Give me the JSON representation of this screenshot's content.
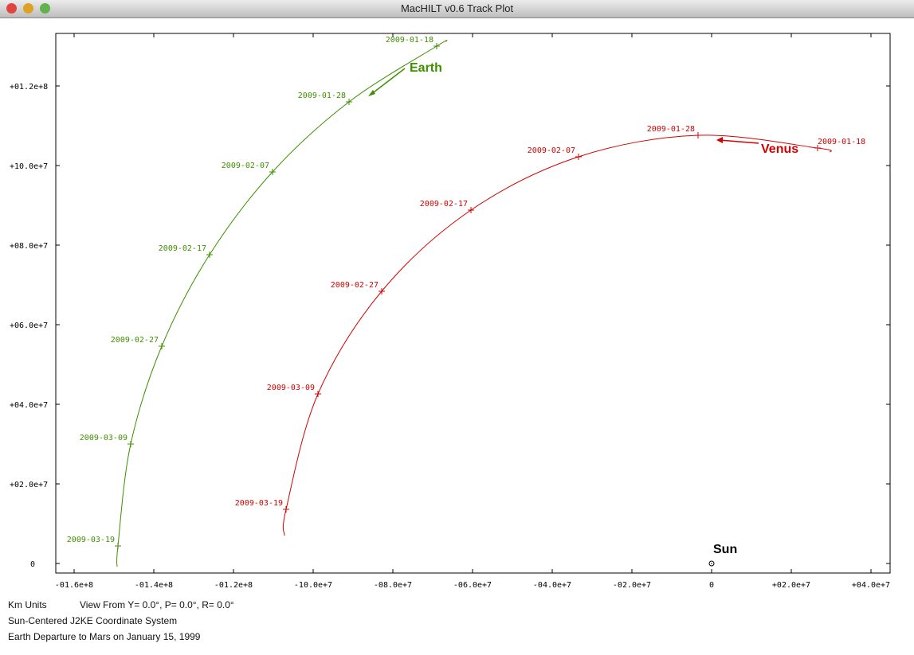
{
  "window_title": "MacHILT v0.6 Track Plot",
  "chart_data": {
    "type": "line",
    "xlim": [
      -164600000,
      44800000
    ],
    "ylim": [
      -2400000,
      133200000
    ],
    "xticks": [
      {
        "value": -160000000,
        "label": "-01.6e+8"
      },
      {
        "value": -140000000,
        "label": "-01.4e+8"
      },
      {
        "value": -120000000,
        "label": "-01.2e+8"
      },
      {
        "value": -100000000,
        "label": "-10.0e+7"
      },
      {
        "value": -80000000,
        "label": "-08.0e+7"
      },
      {
        "value": -60000000,
        "label": "-06.0e+7"
      },
      {
        "value": -40000000,
        "label": "-04.0e+7"
      },
      {
        "value": -20000000,
        "label": "-02.0e+7"
      },
      0,
      {
        "value": 20000000,
        "label": "+02.0e+7"
      },
      {
        "value": 40000000,
        "label": "+04.0e+7"
      }
    ],
    "yticks": [
      0,
      {
        "value": 20000000,
        "label": "+02.0e+7"
      },
      {
        "value": 40000000,
        "label": "+04.0e+7"
      },
      {
        "value": 60000000,
        "label": "+06.0e+7"
      },
      {
        "value": 80000000,
        "label": "+08.0e+7"
      },
      {
        "value": 100000000,
        "label": "+10.0e+7"
      },
      {
        "value": 120000000,
        "label": "+01.2e+8"
      }
    ],
    "series": [
      {
        "name": "Earth",
        "color": "#3f8f00",
        "x": [
          -66600000,
          -69000000,
          -91000000,
          -110200000,
          -126000000,
          -138000000,
          -145800000,
          -149000000,
          -149200000
        ],
        "values": [
          131200000,
          130000000,
          116000000,
          98400000,
          77600000,
          54600000,
          30000000,
          4400000,
          -800000
        ],
        "labels": [
          null,
          "2009-01-18",
          "2009-01-28",
          "2009-02-07",
          "2009-02-17",
          "2009-02-27",
          "2009-03-09",
          "2009-03-19",
          null
        ]
      },
      {
        "name": "Venus",
        "color": "#d40000",
        "x": [
          29800000,
          26600000,
          -3400000,
          -33400000,
          -60400000,
          -82800000,
          -98800000,
          -106800000,
          -107200000
        ],
        "values": [
          103400000,
          104400000,
          107600000,
          102200000,
          88800000,
          68400000,
          42600000,
          13600000,
          7000000
        ],
        "labels": [
          null,
          "2009-01-18",
          "2009-01-28",
          "2009-02-07",
          "2009-02-17",
          "2009-02-27",
          "2009-03-09",
          "2009-03-19",
          null
        ]
      }
    ],
    "sun": {
      "label": "Sun",
      "x": 0,
      "y": 0
    }
  },
  "footer": {
    "units": "Km Units",
    "view": "View From Y=  0.0°, P=  0.0°, R=  0.0°",
    "system": "Sun-Centered J2KE Coordinate System",
    "mission": "Earth Departure to Mars on January 15, 1999"
  }
}
